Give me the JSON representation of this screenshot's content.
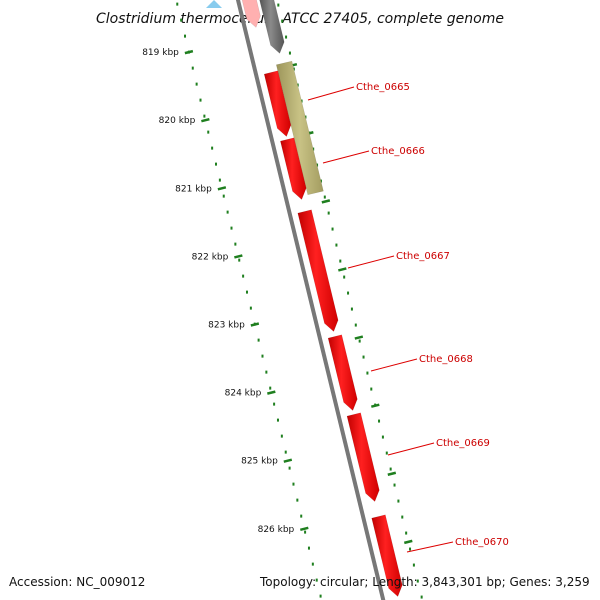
{
  "title": "Clostridium thermocellum ATCC 27405, complete genome",
  "footer": {
    "accession": "Accession: NC_009012",
    "stats": "Topology: circular; Length: 3,843,301 bp; Genes: 3,259"
  },
  "ticks": [
    "819 kbp",
    "820 kbp",
    "821 kbp",
    "822 kbp",
    "823 kbp",
    "824 kbp",
    "825 kbp",
    "826 kbp"
  ],
  "gene_labels": [
    "Cthe_0665",
    "Cthe_0666",
    "Cthe_0667",
    "Cthe_0668",
    "Cthe_0669",
    "Cthe_0670"
  ],
  "colors": {
    "gene": "#ee0000",
    "gene_highlight": "#ff5555",
    "gene_faded": "#ffb0b0",
    "gene_other": "#b5ae6e",
    "gene_grey": "#707070",
    "backbone": "#777777",
    "tick": "#1f7f1f",
    "label_line": "#dd0000"
  }
}
